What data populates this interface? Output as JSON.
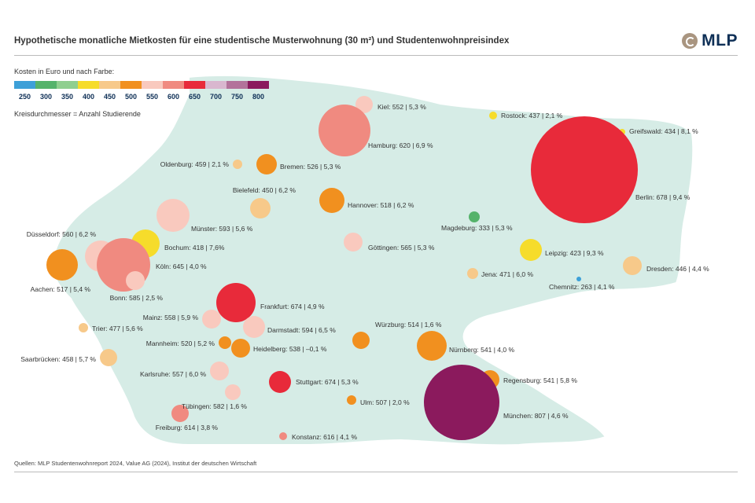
{
  "title": "Hypothetische monatliche Mietkosten für eine studentische Musterwohnung (30 m²) und Studentenwohnpreisindex",
  "logo": {
    "text": "MLP",
    "icon": "mlp-logo-icon"
  },
  "legend": {
    "title": "Kosten in Euro und nach Farbe:",
    "scale": [
      {
        "label": "250",
        "color": "#3da0d8"
      },
      {
        "label": "300",
        "color": "#55b36b"
      },
      {
        "label": "350",
        "color": "#8fcf8f"
      },
      {
        "label": "400",
        "color": "#f6dc2b"
      },
      {
        "label": "450",
        "color": "#f7c98a"
      },
      {
        "label": "500",
        "color": "#f1901f"
      },
      {
        "label": "550",
        "color": "#f9c9be"
      },
      {
        "label": "600",
        "color": "#f08a80"
      },
      {
        "label": "650",
        "color": "#e82a3a"
      },
      {
        "label": "700",
        "color": "#d9b7cf"
      },
      {
        "label": "750",
        "color": "#b3739b"
      },
      {
        "label": "800",
        "color": "#8b1a5d"
      }
    ],
    "size_note": "Kreisdurchmesser = Anzahl Studierende"
  },
  "cities": [
    {
      "name": "Kiel",
      "label": "Kiel: 552 | 5,3 %",
      "cost": 552,
      "color": "#f9c9be"
    },
    {
      "name": "Hamburg",
      "label": "Hamburg: 620 | 6,9 %",
      "cost": 620,
      "color": "#f08a80"
    },
    {
      "name": "Rostock",
      "label": "Rostock: 437 | 2,1 %",
      "cost": 437,
      "color": "#f6dc2b"
    },
    {
      "name": "Greifswald",
      "label": "Greifswald: 434 | 8,1 %",
      "cost": 434,
      "color": "#f6dc2b"
    },
    {
      "name": "Berlin",
      "label": "Berlin: 678 | 9,4 %",
      "cost": 678,
      "color": "#e82a3a"
    },
    {
      "name": "Oldenburg",
      "label": "Oldenburg: 459 | 2,1 %",
      "cost": 459,
      "color": "#f7c98a"
    },
    {
      "name": "Bremen",
      "label": "Bremen: 526 | 5,3 %",
      "cost": 526,
      "color": "#f1901f"
    },
    {
      "name": "Bielefeld",
      "label": "Bielefeld: 450 | 6,2 %",
      "cost": 450,
      "color": "#f7c98a"
    },
    {
      "name": "Hannover",
      "label": "Hannover: 518 | 6,2 %",
      "cost": 518,
      "color": "#f1901f"
    },
    {
      "name": "Magdeburg",
      "label": "Magdeburg: 333 | 5,3 %",
      "cost": 333,
      "color": "#55b36b"
    },
    {
      "name": "Münster",
      "label": "Münster: 593 | 5,6 %",
      "cost": 593,
      "color": "#f9c9be"
    },
    {
      "name": "Düsseldorf",
      "label": "Düsseldorf: 560 | 6,2 %",
      "cost": 560,
      "color": "#f9c9be"
    },
    {
      "name": "Bochum",
      "label": "Bochum: 418 | 7,6%",
      "cost": 418,
      "color": "#f6dc2b"
    },
    {
      "name": "Göttingen",
      "label": "Göttingen: 565 | 5,3 %",
      "cost": 565,
      "color": "#f9c9be"
    },
    {
      "name": "Leipzig",
      "label": "Leipzig: 423 | 9,3 %",
      "cost": 423,
      "color": "#f6dc2b"
    },
    {
      "name": "Köln",
      "label": "Köln: 645 | 4,0 %",
      "cost": 645,
      "color": "#f08a80"
    },
    {
      "name": "Dresden",
      "label": "Dresden: 446 | 4,4 %",
      "cost": 446,
      "color": "#f7c98a"
    },
    {
      "name": "Aachen",
      "label": "Aachen: 517 | 5,4 %",
      "cost": 517,
      "color": "#f1901f"
    },
    {
      "name": "Jena",
      "label": "Jena: 471 | 6,0 %",
      "cost": 471,
      "color": "#f7c98a"
    },
    {
      "name": "Chemnitz",
      "label": "Chemnitz: 263 | 4,1 %",
      "cost": 263,
      "color": "#3da0d8"
    },
    {
      "name": "Bonn",
      "label": "Bonn: 585 | 2,5 %",
      "cost": 585,
      "color": "#f9c9be"
    },
    {
      "name": "Frankfurt",
      "label": "Frankfurt: 674 | 4,9 %",
      "cost": 674,
      "color": "#e82a3a"
    },
    {
      "name": "Mainz",
      "label": "Mainz: 558 | 5,9 %",
      "cost": 558,
      "color": "#f9c9be"
    },
    {
      "name": "Trier",
      "label": "Trier: 477 | 5,6 %",
      "cost": 477,
      "color": "#f7c98a"
    },
    {
      "name": "Darmstadt",
      "label": "Darmstadt: 594 | 6,5 %",
      "cost": 594,
      "color": "#f9c9be"
    },
    {
      "name": "Würzburg",
      "label": "Würzburg: 514 | 1,6 %",
      "cost": 514,
      "color": "#f1901f"
    },
    {
      "name": "Mannheim",
      "label": "Mannheim: 520 | 5,2 %",
      "cost": 520,
      "color": "#f1901f"
    },
    {
      "name": "Heidelberg",
      "label": "Heidelberg: 538 | –0,1 %",
      "cost": 538,
      "color": "#f1901f"
    },
    {
      "name": "Nürnberg",
      "label": "Nürnberg: 541 | 4,0 %",
      "cost": 541,
      "color": "#f1901f"
    },
    {
      "name": "Saarbrücken",
      "label": "Saarbrücken: 458 | 5,7 %",
      "cost": 458,
      "color": "#f7c98a"
    },
    {
      "name": "Karlsruhe",
      "label": "Karlsruhe: 557 | 6,0 %",
      "cost": 557,
      "color": "#f9c9be"
    },
    {
      "name": "Stuttgart",
      "label": "Stuttgart: 674 | 5,3 %",
      "cost": 674,
      "color": "#e82a3a"
    },
    {
      "name": "Regensburg",
      "label": "Regensburg: 541 | 5,8 %",
      "cost": 541,
      "color": "#f1901f"
    },
    {
      "name": "Tübingen",
      "label": "Tübingen: 582 | 1,6 %",
      "cost": 582,
      "color": "#f9c9be"
    },
    {
      "name": "Ulm",
      "label": "Ulm: 507 | 2,0 %",
      "cost": 507,
      "color": "#f1901f"
    },
    {
      "name": "München",
      "label": "München: 807 | 4,6 %",
      "cost": 807,
      "color": "#8b1a5d"
    },
    {
      "name": "Freiburg",
      "label": "Freiburg: 614 | 3,8 %",
      "cost": 614,
      "color": "#f08a80"
    },
    {
      "name": "Konstanz",
      "label": "Konstanz: 616 | 4,1 %",
      "cost": 616,
      "color": "#f08a80"
    }
  ],
  "source": "Quellen: MLP Studentenwohnreport 2024, Value AG (2024), Institut der deutschen Wirtschaft",
  "map_color": "#d6ece6"
}
